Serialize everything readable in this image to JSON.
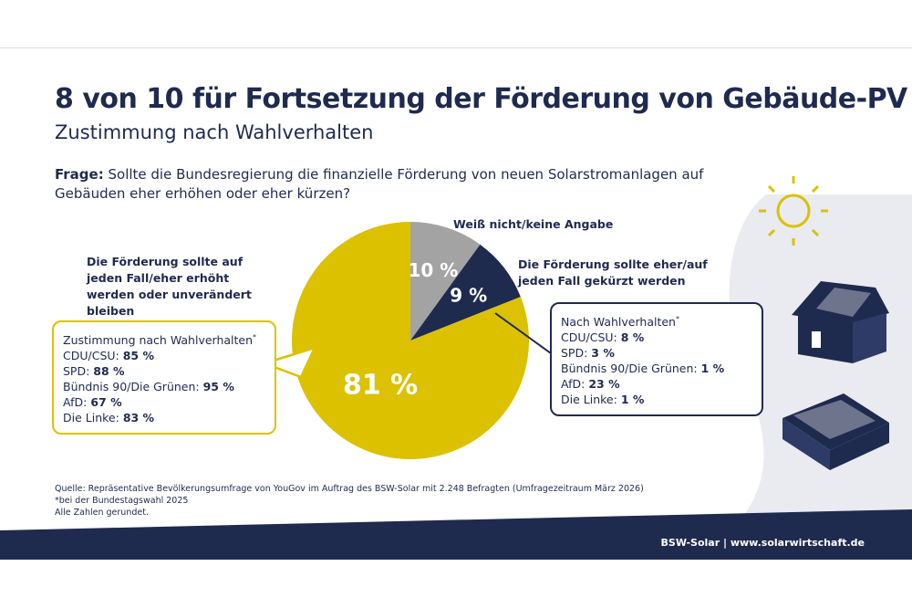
{
  "title": "8 von 10 für Fortsetzung der Förderung von Gebäude-PV",
  "subtitle": "Zustimmung nach Wahlverhalten",
  "question": {
    "prefix": "Frage:",
    "text": "Sollte die Bundesregierung die finanzielle Förderung von neuen Solarstromanlagen auf Gebäuden eher erhöhen oder eher kürzen?"
  },
  "colors": {
    "yellow": "#dcc100",
    "navy": "#1f2a4f",
    "gray": "#a3a3a3",
    "bg": "#e9ebf0"
  },
  "chart_data": {
    "type": "pie",
    "slices": [
      {
        "label": "Weiß nicht/keine Angabe",
        "value": 10,
        "display": "10 %",
        "color": "#a3a3a3"
      },
      {
        "label": "Die Förderung sollte eher/auf jeden Fall gekürzt werden",
        "value": 9,
        "display": "9 %",
        "color": "#1f2a4f"
      },
      {
        "label": "Die Förderung sollte auf jeden Fall/eher erhöht werden oder unverändert bleiben",
        "value": 81,
        "display": "81 %",
        "color": "#dcc100"
      }
    ]
  },
  "box_left": {
    "heading": "Zustimmung nach Wahlverhalten",
    "star": "*",
    "rows": [
      {
        "party": "CDU/CSU:",
        "value": "85 %"
      },
      {
        "party": "SPD:",
        "value": "88 %"
      },
      {
        "party": "Bündnis 90/Die Grünen:",
        "value": "95 %"
      },
      {
        "party": "AfD:",
        "value": "67 %"
      },
      {
        "party": "Die Linke:",
        "value": "83 %"
      }
    ]
  },
  "box_right": {
    "heading": "Nach Wahlverhalten",
    "star": "*",
    "rows": [
      {
        "party": "CDU/CSU:",
        "value": "8 %"
      },
      {
        "party": "SPD:",
        "value": "3 %"
      },
      {
        "party": "Bündnis 90/Die Grünen:",
        "value": "1 %"
      },
      {
        "party": "AfD:",
        "value": "23 %"
      },
      {
        "party": "Die Linke:",
        "value": "1 %"
      }
    ]
  },
  "source": [
    "Quelle: Repräsentative Bevölkerungsumfrage von YouGov im Auftrag des BSW-Solar mit 2.248 Befragten (Umfragezeitraum März 2026)",
    "*bei der Bundestagswahl 2025",
    "Alle Zahlen gerundet."
  ],
  "footer": "BSW-Solar | www.solarwirtschaft.de"
}
